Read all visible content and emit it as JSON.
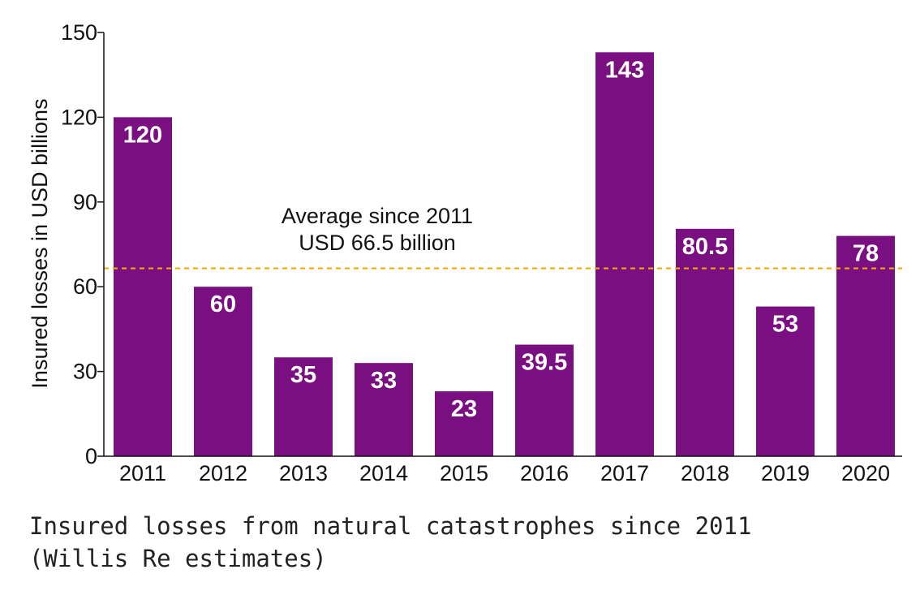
{
  "chart_data": {
    "type": "bar",
    "categories": [
      "2011",
      "2012",
      "2013",
      "2014",
      "2015",
      "2016",
      "2017",
      "2018",
      "2019",
      "2020"
    ],
    "values": [
      120,
      60,
      35,
      33,
      23,
      39.5,
      143,
      80.5,
      53,
      78
    ],
    "value_labels": [
      "120",
      "60",
      "35",
      "33",
      "23",
      "39.5",
      "143",
      "80.5",
      "53",
      "78"
    ],
    "ylabel": "Insured losses in USD billions",
    "xlabel": "",
    "ylim": [
      0,
      150
    ],
    "yticks": [
      0,
      30,
      60,
      90,
      120,
      150
    ],
    "grid": false,
    "bar_color": "#7a0f82",
    "average_line": {
      "value": 66.5,
      "color": "#f2a900",
      "label_line1": "Average since 2011",
      "label_line2": "USD 66.5 billion"
    }
  },
  "caption": {
    "line1": "Insured losses from natural catastrophes since 2011",
    "line2": "(Willis Re estimates)"
  }
}
